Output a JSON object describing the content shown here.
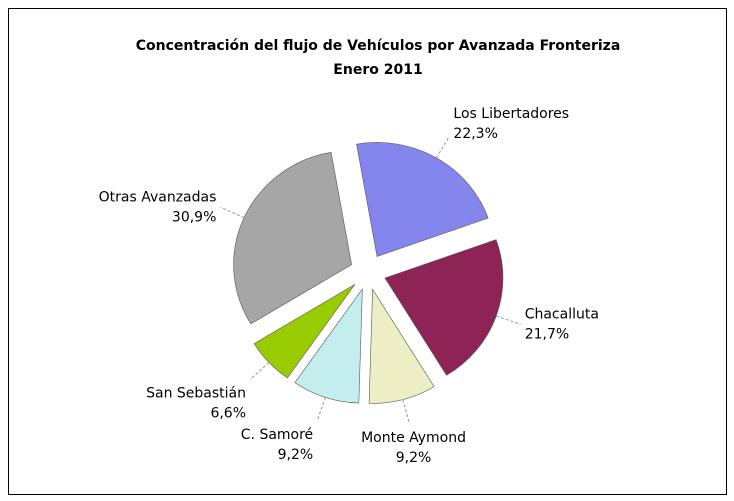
{
  "chart_data": {
    "type": "pie",
    "title": "Concentración del flujo de Vehículos por Avanzada Fronteriza",
    "subtitle": "Enero 2011",
    "categories": [
      "Los Libertadores",
      "Chacalluta",
      "Monte Aymond",
      "C. Samoré",
      "San Sebastián",
      "Otras Avanzadas"
    ],
    "values": [
      22.3,
      21.7,
      9.2,
      9.2,
      6.6,
      30.9
    ],
    "value_labels": [
      "22,3%",
      "21,7%",
      "9,2%",
      "9,2%",
      "6,6%",
      "30,9%"
    ],
    "colors": [
      "#8585ee",
      "#8e2456",
      "#eeeec4",
      "#c4eeee",
      "#99cc00",
      "#a6a6a6"
    ]
  }
}
